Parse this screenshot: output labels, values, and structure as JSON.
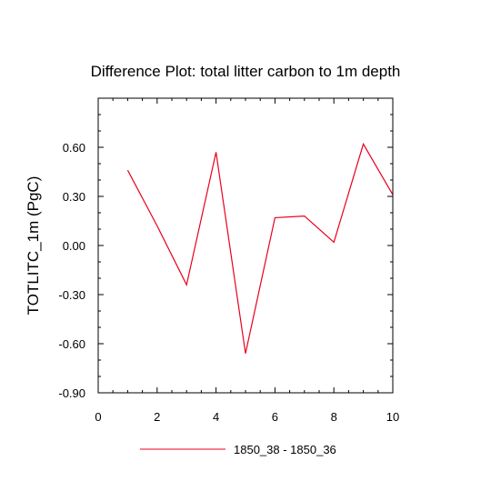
{
  "chart_data": {
    "type": "line",
    "title": "Difference Plot: total litter carbon to 1m depth",
    "xlabel": "",
    "ylabel": "TOTLITC_1m  (PgC)",
    "xlim": [
      0,
      10
    ],
    "ylim": [
      -0.9,
      0.9
    ],
    "x_ticks": [
      0,
      2,
      4,
      6,
      8,
      10
    ],
    "x_tick_labels": [
      "0",
      "2",
      "4",
      "6",
      "8",
      "10"
    ],
    "y_ticks": [
      -0.9,
      -0.6,
      -0.3,
      0.0,
      0.3,
      0.6
    ],
    "y_tick_labels": [
      "-0.90",
      "-0.60",
      "-0.30",
      "0.00",
      "0.30",
      "0.60"
    ],
    "grid": false,
    "legend_position": "bottom-center",
    "series": [
      {
        "name": "1850_38 - 1850_36",
        "color": "#e8001c",
        "x": [
          1,
          2,
          3,
          4,
          5,
          6,
          7,
          8,
          9,
          10
        ],
        "values": [
          0.46,
          0.12,
          -0.24,
          0.57,
          -0.66,
          0.17,
          0.18,
          0.02,
          0.62,
          0.31
        ]
      }
    ]
  }
}
